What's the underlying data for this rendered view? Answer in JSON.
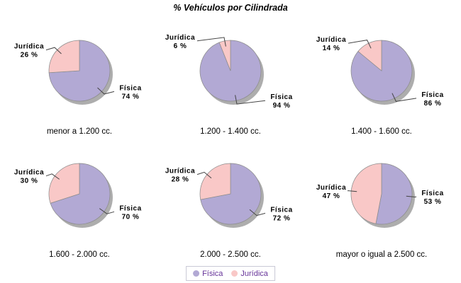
{
  "title": "% Vehículos por Cilindrada",
  "percent_suffix": " %",
  "colors": {
    "fisica": "#B2A9D4",
    "juridica": "#F9C8C7",
    "shadow": "#999999",
    "slice_outline": "#8C8C8C",
    "leader_line": "#444444",
    "legend_text": "#663399",
    "legend_border": "#C9C9D6"
  },
  "legend": {
    "items": [
      {
        "label": "Física",
        "color": "#B2A9D4"
      },
      {
        "label": "Jurídica",
        "color": "#F9C8C7"
      }
    ]
  },
  "chart_data": [
    {
      "type": "pie",
      "title": "menor a 1.200 cc.",
      "categories": [
        "Física",
        "Jurídica"
      ],
      "values": [
        74,
        26
      ],
      "legend_position": "bottom"
    },
    {
      "type": "pie",
      "title": "1.200 - 1.400 cc.",
      "categories": [
        "Física",
        "Jurídica"
      ],
      "values": [
        94,
        6
      ],
      "legend_position": "bottom"
    },
    {
      "type": "pie",
      "title": "1.400 - 1.600 cc.",
      "categories": [
        "Física",
        "Jurídica"
      ],
      "values": [
        86,
        14
      ],
      "legend_position": "bottom"
    },
    {
      "type": "pie",
      "title": "1.600 - 2.000 cc.",
      "categories": [
        "Física",
        "Jurídica"
      ],
      "values": [
        70,
        30
      ],
      "legend_position": "bottom"
    },
    {
      "type": "pie",
      "title": "2.000 - 2.500 cc.",
      "categories": [
        "Física",
        "Jurídica"
      ],
      "values": [
        72,
        28
      ],
      "legend_position": "bottom"
    },
    {
      "type": "pie",
      "title": "mayor o igual a 2.500 cc.",
      "categories": [
        "Física",
        "Jurídica"
      ],
      "values": [
        53,
        47
      ],
      "legend_position": "bottom"
    }
  ]
}
